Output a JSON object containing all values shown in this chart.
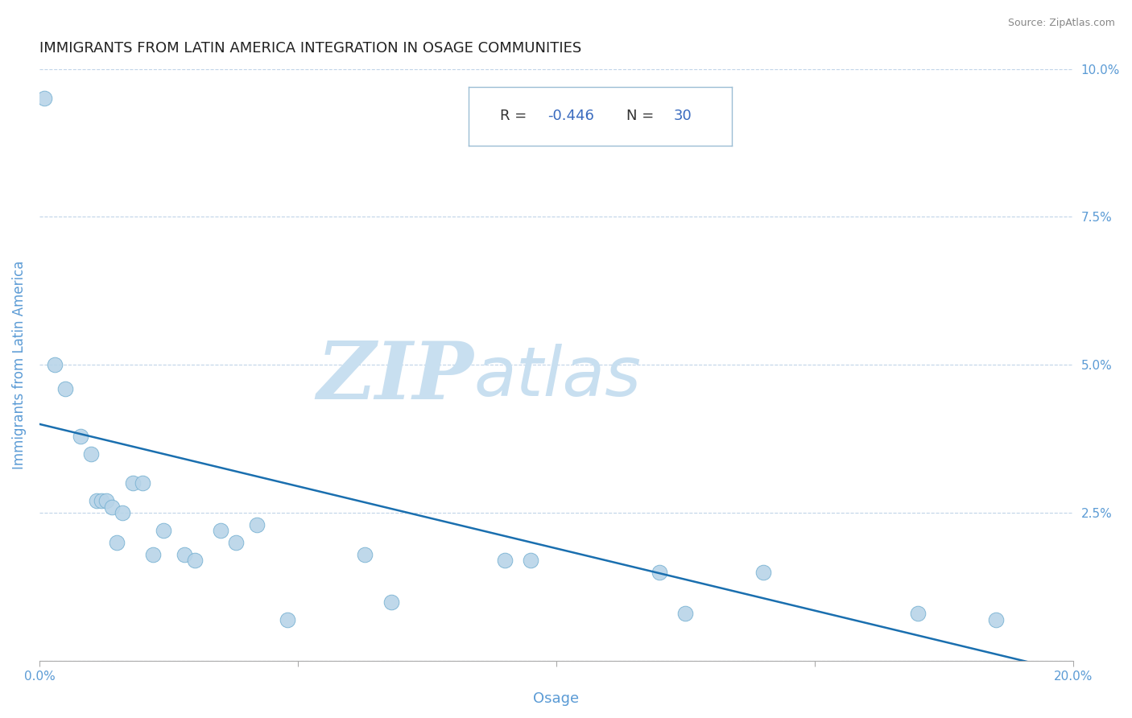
{
  "title": "IMMIGRANTS FROM LATIN AMERICA INTEGRATION IN OSAGE COMMUNITIES",
  "source_text": "Source: ZipAtlas.com",
  "xlabel": "Osage",
  "ylabel": "Immigrants from Latin America",
  "R": -0.446,
  "N": 30,
  "xlim": [
    0.0,
    0.2
  ],
  "ylim": [
    0.0,
    0.1
  ],
  "xticks": [
    0.0,
    0.05,
    0.1,
    0.15,
    0.2
  ],
  "xtick_labels": [
    "0.0%",
    "",
    "",
    "",
    "20.0%"
  ],
  "yticks": [
    0.0,
    0.025,
    0.05,
    0.075,
    0.1
  ],
  "ytick_labels_right": [
    "",
    "2.5%",
    "5.0%",
    "7.5%",
    "10.0%"
  ],
  "scatter_x": [
    0.001,
    0.003,
    0.005,
    0.008,
    0.01,
    0.011,
    0.012,
    0.013,
    0.014,
    0.015,
    0.016,
    0.018,
    0.02,
    0.022,
    0.024,
    0.028,
    0.03,
    0.035,
    0.038,
    0.042,
    0.048,
    0.063,
    0.068,
    0.09,
    0.095,
    0.12,
    0.125,
    0.14,
    0.17,
    0.185
  ],
  "scatter_y": [
    0.095,
    0.05,
    0.046,
    0.038,
    0.035,
    0.027,
    0.027,
    0.027,
    0.026,
    0.02,
    0.025,
    0.03,
    0.03,
    0.018,
    0.022,
    0.018,
    0.017,
    0.022,
    0.02,
    0.023,
    0.007,
    0.018,
    0.01,
    0.017,
    0.017,
    0.015,
    0.008,
    0.015,
    0.008,
    0.007
  ],
  "scatter_color": "#b8d4e8",
  "scatter_edgecolor": "#7ab3d3",
  "regression_color": "#1a6faf",
  "regression_x_start": 0.0,
  "regression_x_end": 0.2,
  "regression_y_start": 0.04,
  "regression_y_end": -0.002,
  "watermark_ZIP_text": "ZIP",
  "watermark_atlas_text": "atlas",
  "watermark_color": "#c8dff0",
  "background_color": "#ffffff",
  "title_color": "#222222",
  "title_fontsize": 13,
  "axis_label_color": "#5b9bd5",
  "tick_color": "#5b9bd5",
  "grid_color": "#c0d4e8",
  "annotation_box_edgecolor": "#9bbdd4",
  "R_label_color": "#333333",
  "R_value_color": "#3a6bbf",
  "N_label_color": "#333333",
  "N_value_color": "#3a6bbf"
}
